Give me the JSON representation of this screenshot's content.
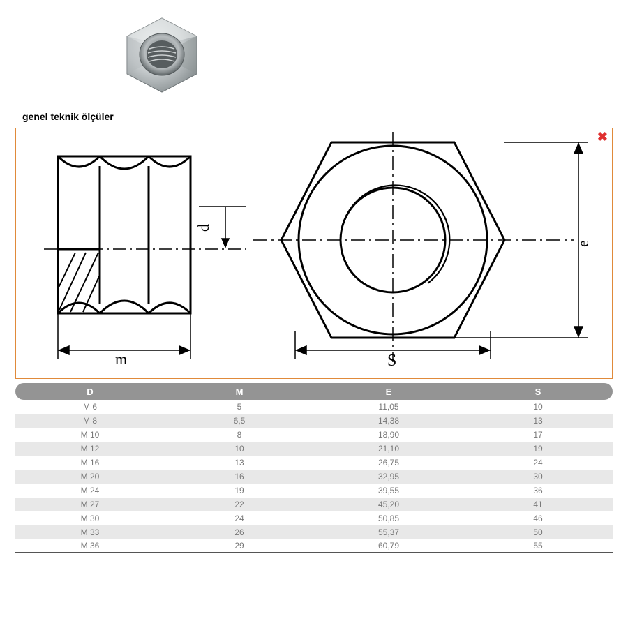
{
  "title": "genel teknik ölçüler",
  "close_label": "✖",
  "diagram": {
    "labels": {
      "m": "m",
      "d": "d",
      "s": "S",
      "e": "e"
    },
    "colors": {
      "stroke": "#000000",
      "border": "#e08a3a",
      "close": "#e03030",
      "hatch": "#000000"
    },
    "stroke_width_main": 3,
    "stroke_width_thin": 1.5
  },
  "nut_photo": {
    "body_color": "#c8ccce",
    "hilite": "#eef1f2",
    "shadow": "#8f9597",
    "thread": "#9aa0a2",
    "size": 130
  },
  "table": {
    "header_bg": "#949494",
    "header_fg": "#ffffff",
    "row_even_bg": "#e8e8e8",
    "row_odd_bg": "#ffffff",
    "text_color": "#787878",
    "columns": [
      "D",
      "M",
      "E",
      "S"
    ],
    "rows": [
      [
        "M 6",
        "5",
        "11,05",
        "10"
      ],
      [
        "M 8",
        "6,5",
        "14,38",
        "13"
      ],
      [
        "M 10",
        "8",
        "18,90",
        "17"
      ],
      [
        "M 12",
        "10",
        "21,10",
        "19"
      ],
      [
        "M 16",
        "13",
        "26,75",
        "24"
      ],
      [
        "M 20",
        "16",
        "32,95",
        "30"
      ],
      [
        "M 24",
        "19",
        "39,55",
        "36"
      ],
      [
        "M 27",
        "22",
        "45,20",
        "41"
      ],
      [
        "M 30",
        "24",
        "50,85",
        "46"
      ],
      [
        "M 33",
        "26",
        "55,37",
        "50"
      ],
      [
        "M 36",
        "29",
        "60,79",
        "55"
      ]
    ]
  }
}
